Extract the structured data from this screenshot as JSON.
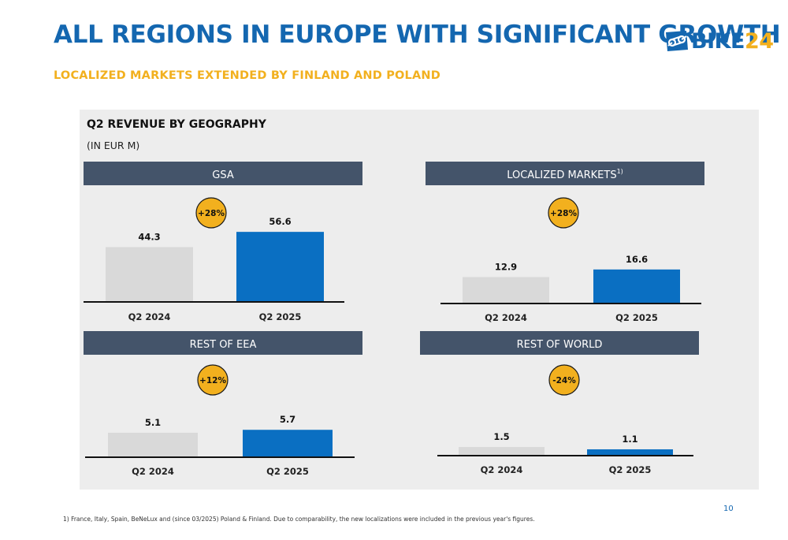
{
  "header": {
    "title": "ALL REGIONS IN EUROPE WITH SIGNIFICANT GROWTH",
    "subtitle": "LOCALIZED MARKETS EXTENDED BY FINLAND AND POLAND",
    "logo_bike": "BIKE",
    "logo_num": "24"
  },
  "panel": {
    "title": "Q2 REVENUE BY GEOGRAPHY",
    "unit": "(IN EUR M)"
  },
  "colors": {
    "title": "#1467b0",
    "accent": "#f2b01e",
    "bar_prior": "#d9d9d9",
    "bar_current": "#0a6fc2",
    "header_bar": "#44546a",
    "panel_bg": "#ededed"
  },
  "chart_data": [
    {
      "type": "bar",
      "title": "GSA",
      "title_sup": "",
      "categories": [
        "Q2 2024",
        "Q2 2025"
      ],
      "values": [
        44.3,
        56.6
      ],
      "labels": [
        "44.3",
        "56.6"
      ],
      "change_badge": "+28%"
    },
    {
      "type": "bar",
      "title": "LOCALIZED MARKETS",
      "title_sup": "1)",
      "categories": [
        "Q2 2024",
        "Q2 2025"
      ],
      "values": [
        12.9,
        16.6
      ],
      "labels": [
        "12.9",
        "16.6"
      ],
      "change_badge": "+28%"
    },
    {
      "type": "bar",
      "title": "REST OF EEA",
      "title_sup": "",
      "categories": [
        "Q2 2024",
        "Q2 2025"
      ],
      "values": [
        5.1,
        5.7
      ],
      "labels": [
        "5.1",
        "5.7"
      ],
      "change_badge": "+12%"
    },
    {
      "type": "bar",
      "title": "REST OF WORLD",
      "title_sup": "",
      "categories": [
        "Q2 2024",
        "Q2 2025"
      ],
      "values": [
        1.5,
        1.1
      ],
      "labels": [
        "1.5",
        "1.1"
      ],
      "change_badge": "-24%"
    }
  ],
  "footnote": "1) France, Italy, Spain, BeNeLux and (since 03/2025) Poland & Finland. Due to comparability, the new localizations were included in the previous year's figures.",
  "page_number": "10"
}
